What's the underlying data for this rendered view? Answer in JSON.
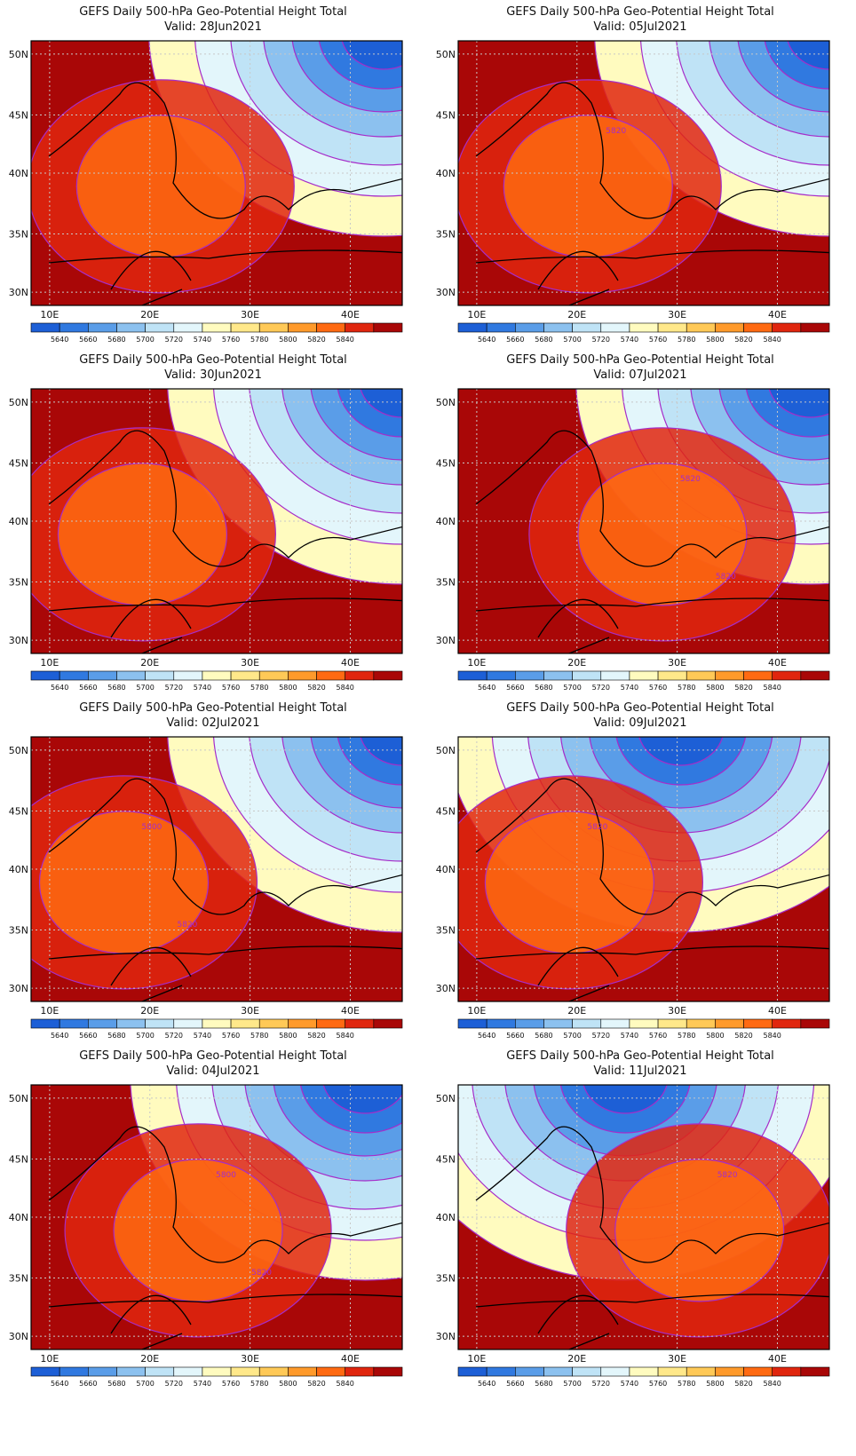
{
  "figure": {
    "panels": [
      {
        "title": "GEFS Daily 500-hPa Geo-Potential Height Total",
        "valid": "Valid: 28Jun2021",
        "ridge": 0.35,
        "trough": 0.95,
        "contour_labels": []
      },
      {
        "title": "GEFS Daily 500-hPa Geo-Potential Height Total",
        "valid": "Valid: 05Jul2021",
        "ridge": 0.35,
        "trough": 1.0,
        "contour_labels": [
          "5820"
        ]
      },
      {
        "title": "GEFS Daily 500-hPa Geo-Potential Height Total",
        "valid": "Valid: 30Jun2021",
        "ridge": 0.3,
        "trough": 1.0,
        "contour_labels": []
      },
      {
        "title": "GEFS Daily 500-hPa Geo-Potential Height Total",
        "valid": "Valid: 07Jul2021",
        "ridge": 0.55,
        "trough": 0.95,
        "contour_labels": [
          "5820",
          "5820"
        ]
      },
      {
        "title": "GEFS Daily 500-hPa Geo-Potential Height Total",
        "valid": "Valid: 02Jul2021",
        "ridge": 0.25,
        "trough": 1.0,
        "contour_labels": [
          "5800",
          "5820"
        ]
      },
      {
        "title": "GEFS Daily 500-hPa Geo-Potential Height Total",
        "valid": "Valid: 09Jul2021",
        "ridge": 0.3,
        "trough": 0.6,
        "contour_labels": [
          "5820"
        ]
      },
      {
        "title": "GEFS Daily 500-hPa Geo-Potential Height Total",
        "valid": "Valid: 04Jul2021",
        "ridge": 0.45,
        "trough": 0.9,
        "contour_labels": [
          "5800",
          "5820"
        ]
      },
      {
        "title": "GEFS Daily 500-hPa Geo-Potential Height Total",
        "valid": "Valid: 11Jul2021",
        "ridge": 0.65,
        "trough": 0.45,
        "contour_labels": [
          "5820"
        ]
      }
    ],
    "x_ticks": [
      "10E",
      "20E",
      "30E",
      "40E"
    ],
    "y_ticks": [
      "50N",
      "45N",
      "40N",
      "35N",
      "30N"
    ],
    "colorbar": {
      "levels": [
        "5640",
        "5660",
        "5680",
        "5700",
        "5720",
        "5740",
        "5760",
        "5780",
        "5800",
        "5820",
        "5840"
      ],
      "colors": [
        "#1d5fd6",
        "#3079e0",
        "#5a9de8",
        "#8cc1ef",
        "#bfe3f6",
        "#e3f6fb",
        "#fffbbf",
        "#ffe88a",
        "#ffc957",
        "#ff9a2b",
        "#ff6a12",
        "#e0260e",
        "#a90707"
      ]
    },
    "colors": {
      "contour_line": "#a62cc9",
      "coast_line": "#000000",
      "grid_line": "#c8c8c8",
      "text": "#111111"
    }
  }
}
